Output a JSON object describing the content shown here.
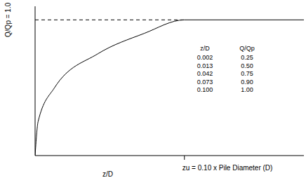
{
  "chart_data": {
    "type": "line",
    "x_label": "z/D",
    "x": [
      0,
      0.002,
      0.013,
      0.042,
      0.073,
      0.1,
      0.18
    ],
    "series": [
      {
        "name": "Q/Qp",
        "color": "#000000",
        "values": [
          0,
          0.25,
          0.5,
          0.75,
          0.9,
          1.0,
          1.0
        ]
      }
    ],
    "xlim": [
      0,
      0.18
    ],
    "ylim": [
      0,
      1.1
    ],
    "xticks": [
      {
        "value": 0.1,
        "label": "zu = 0.10 x Pile Diameter (D)"
      }
    ],
    "yticks": [
      {
        "value": 1,
        "label": "Q/Qp = 1.0"
      }
    ],
    "table": {
      "headers": [
        "z/D",
        "Q/Qp"
      ],
      "rows": [
        [
          "0.002",
          "0.25"
        ],
        [
          "0.013",
          "0.50"
        ],
        [
          "0.042",
          "0.75"
        ],
        [
          "0.073",
          "0.90"
        ],
        [
          "0.100",
          "1.00"
        ]
      ]
    }
  }
}
